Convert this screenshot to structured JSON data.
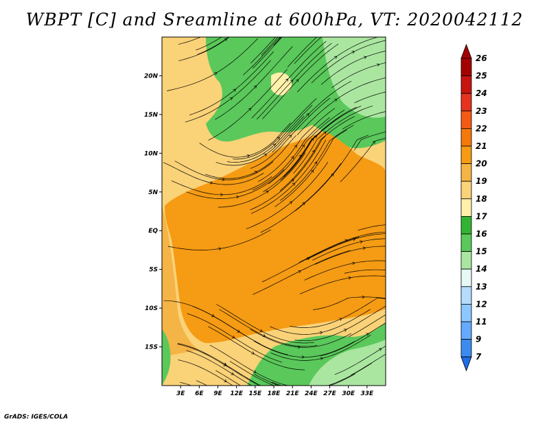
{
  "title": "WBPT [C] and Sreamline at 600hPa, VT: 2020042112",
  "footer": "GrADS: IGES/COLA",
  "map": {
    "lon_range": [
      0,
      36
    ],
    "lat_range": [
      -20,
      25
    ],
    "lat_labels": [
      "20N",
      "15N",
      "10N",
      "5N",
      "EQ",
      "5S",
      "10S",
      "15S"
    ],
    "lat_values": [
      20,
      15,
      10,
      5,
      0,
      -5,
      -10,
      -15
    ],
    "lon_labels": [
      "3E",
      "6E",
      "9E",
      "12E",
      "15E",
      "18E",
      "21E",
      "24E",
      "27E",
      "30E",
      "33E"
    ],
    "lon_values": [
      3,
      6,
      9,
      12,
      15,
      18,
      21,
      24,
      27,
      30,
      33
    ]
  },
  "colorbar": {
    "levels": [
      "26",
      "25",
      "24",
      "23",
      "22",
      "21",
      "20",
      "19",
      "18",
      "17",
      "16",
      "15",
      "14",
      "13",
      "12",
      "11",
      "9",
      "7"
    ],
    "colors": [
      "#a50000",
      "#c8140f",
      "#e6321e",
      "#f55a14",
      "#f5780a",
      "#f59b14",
      "#f5b446",
      "#fad278",
      "#fff0aa",
      "#32b432",
      "#5ac85a",
      "#aae6a0",
      "#e6faf5",
      "#b4dcff",
      "#8cc8ff",
      "#64aaff",
      "#3c8cf0",
      "#1e6ee6"
    ]
  }
}
